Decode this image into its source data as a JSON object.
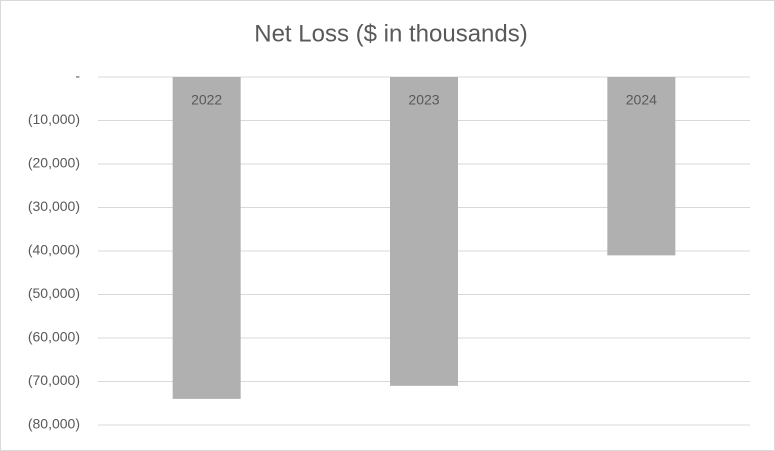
{
  "chart_data": {
    "type": "bar",
    "title": "Net Loss ($ in thousands)",
    "categories": [
      "2022",
      "2023",
      "2024"
    ],
    "values": [
      -74000,
      -71000,
      -41000
    ],
    "color": "#b0b0b0",
    "ylim": [
      -80000,
      0
    ],
    "yticks": [
      {
        "value": 0,
        "label": "-"
      },
      {
        "value": -10000,
        "label": "(10,000)"
      },
      {
        "value": -20000,
        "label": "(20,000)"
      },
      {
        "value": -30000,
        "label": "(30,000)"
      },
      {
        "value": -40000,
        "label": "(40,000)"
      },
      {
        "value": -50000,
        "label": "(50,000)"
      },
      {
        "value": -60000,
        "label": "(60,000)"
      },
      {
        "value": -70000,
        "label": "(70,000)"
      },
      {
        "value": -80000,
        "label": "(80,000)"
      }
    ],
    "grid": true
  }
}
